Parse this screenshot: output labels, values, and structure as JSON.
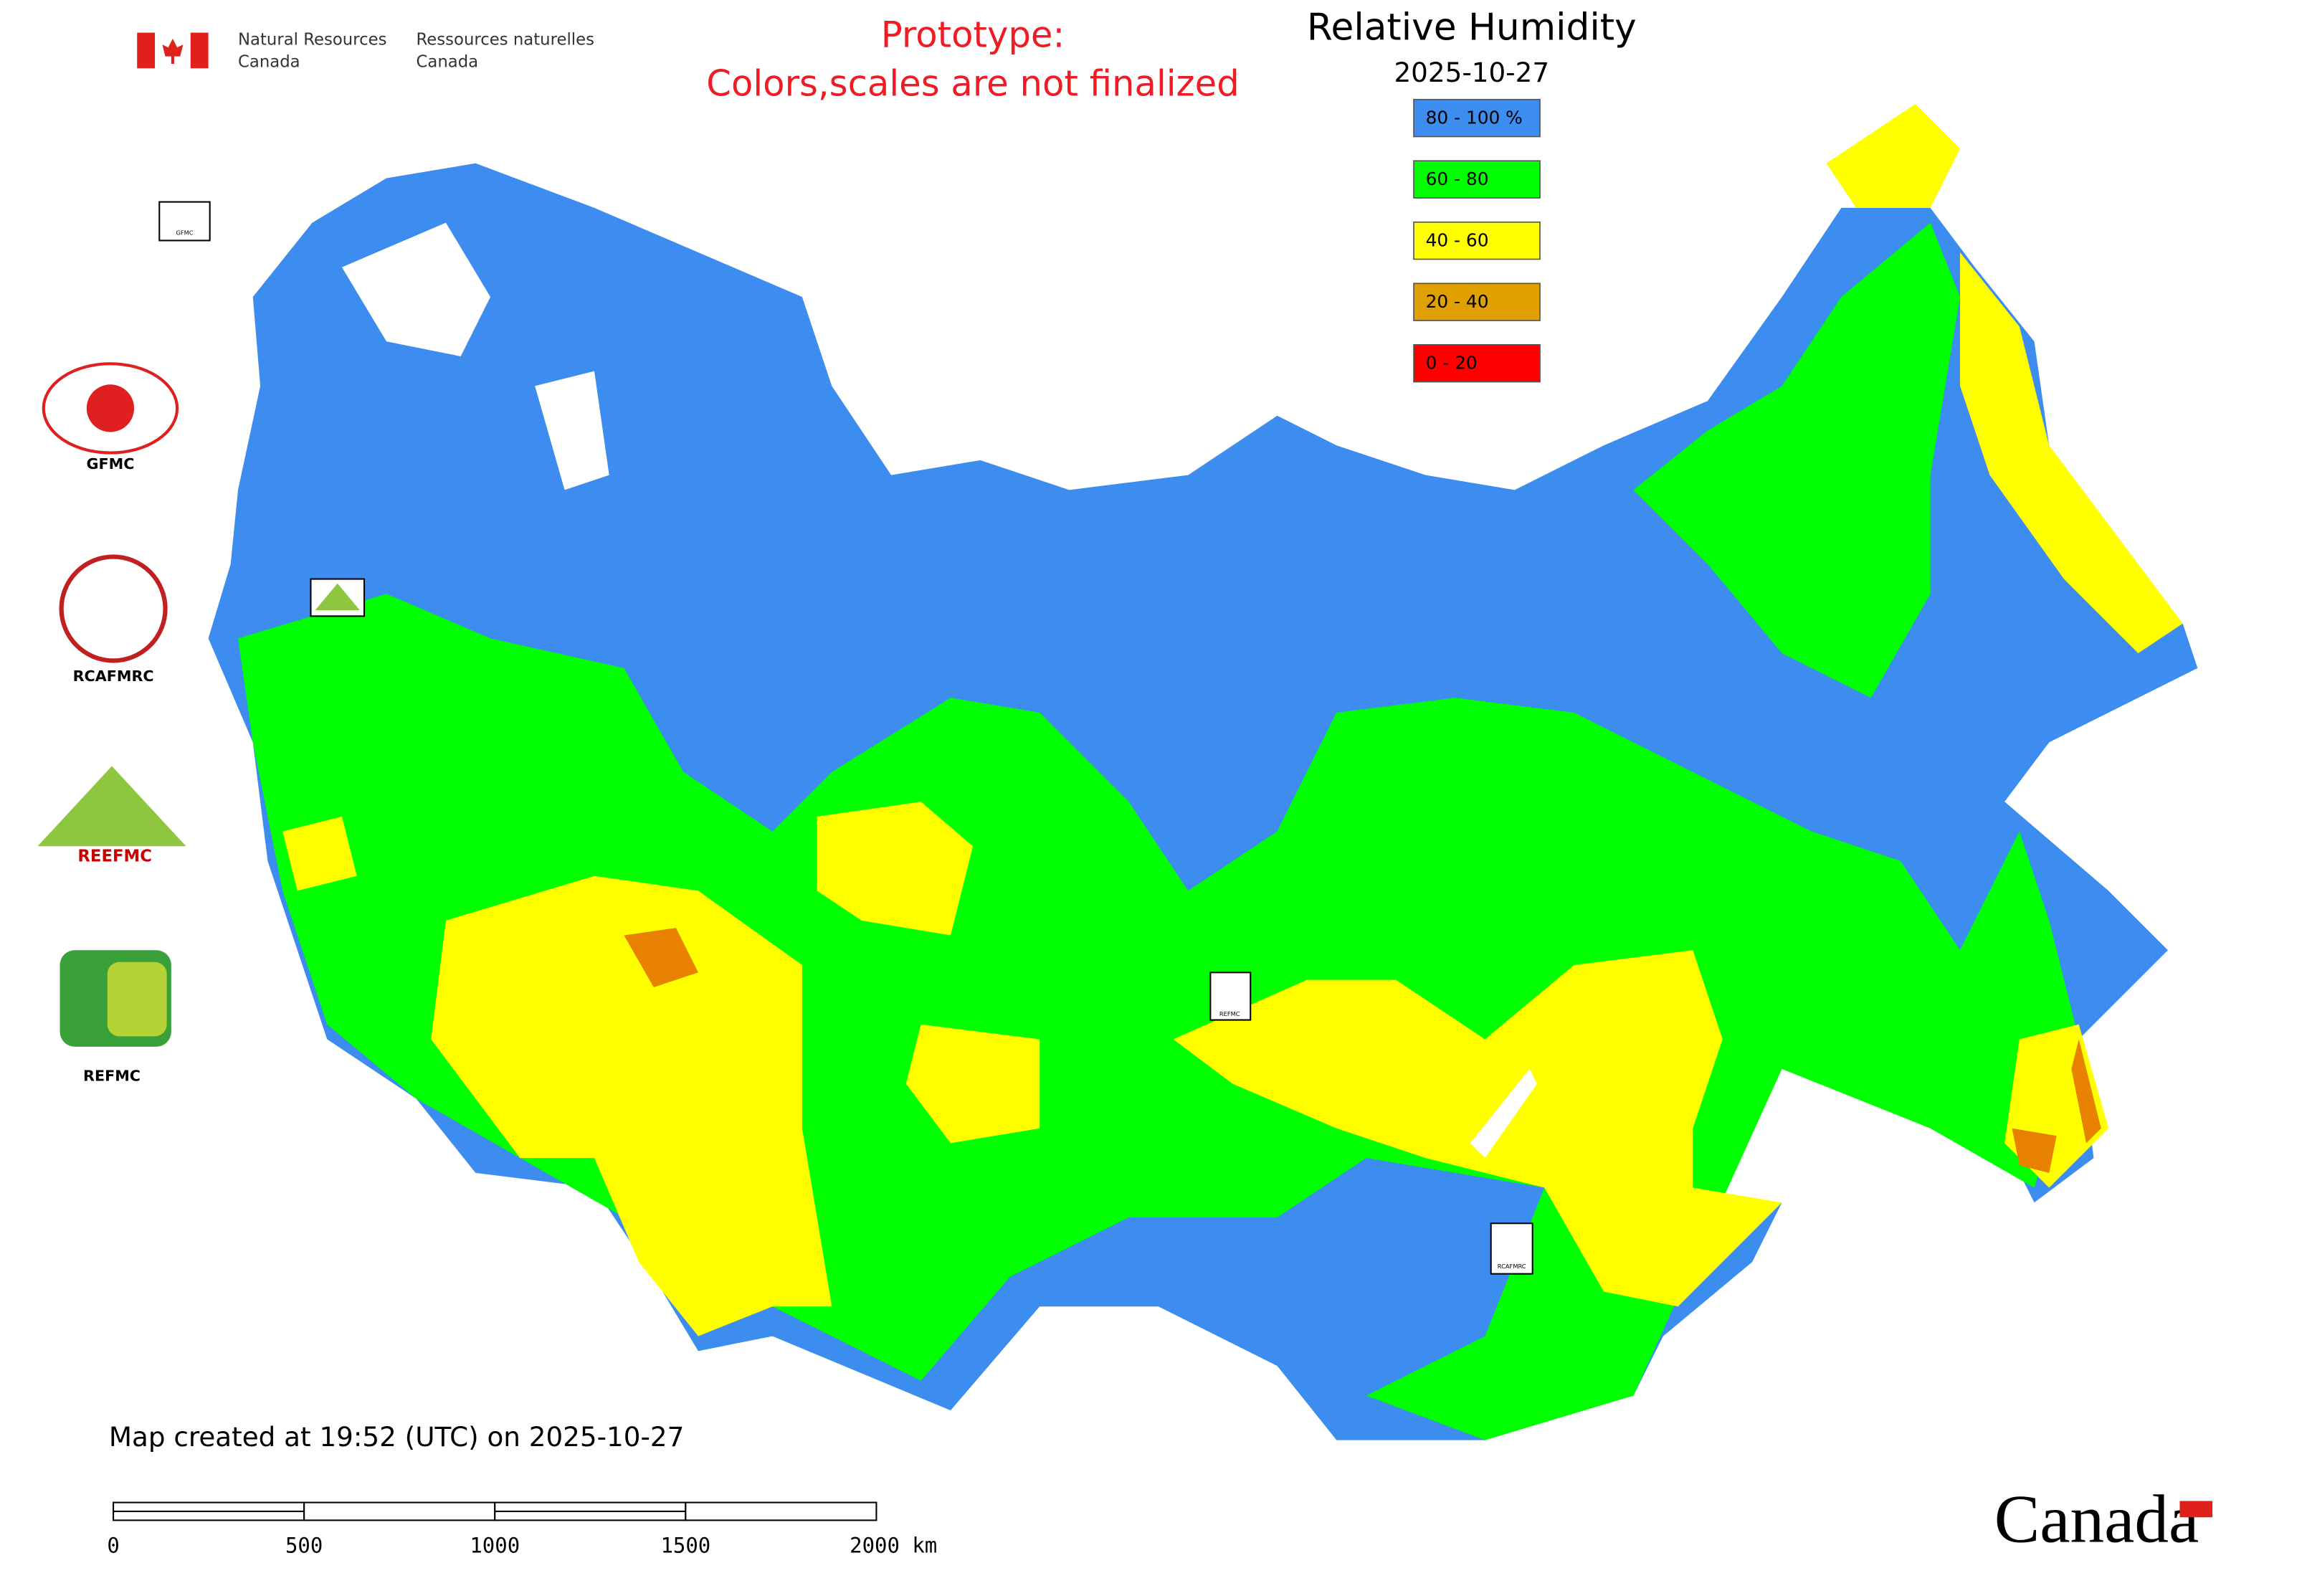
{
  "header": {
    "agency_en": [
      "Natural Resources",
      "Canada"
    ],
    "agency_fr": [
      "Ressources naturelles",
      "Canada"
    ],
    "notice": [
      "Prototype:",
      "Colors,scales are not finalized"
    ]
  },
  "map": {
    "title": "Relative Humidity",
    "date": "2025-10-27",
    "legend": [
      {
        "label": "80 - 100 %",
        "color": "#3d8cf0"
      },
      {
        "label": "60 - 80",
        "color": "#00ff00"
      },
      {
        "label": "40 - 60",
        "color": "#ffff00"
      },
      {
        "label": "20 - 40",
        "color": "#e0a000"
      },
      {
        "label": "0 - 20",
        "color": "#ff0000"
      }
    ],
    "footer": "Map created at 19:52 (UTC) on 2025-10-27",
    "scale_labels": [
      "0",
      "500",
      "1000",
      "1500",
      "2000 km"
    ]
  },
  "logos": [
    "GFMC",
    "RCAFMRC",
    "REEFMC",
    "REFMC"
  ],
  "wordmark": "Canada"
}
